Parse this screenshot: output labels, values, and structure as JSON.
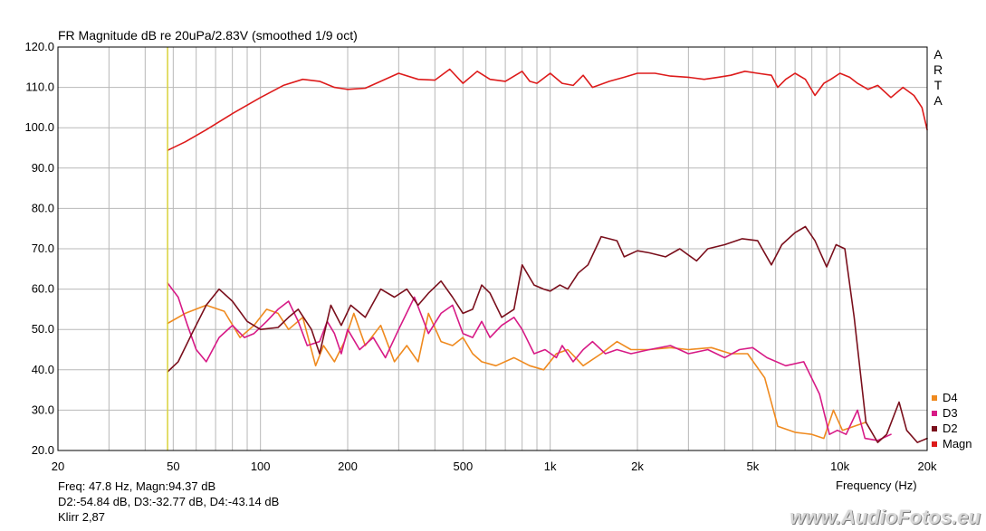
{
  "chart_data": {
    "type": "line",
    "title": "FR Magnitude dB re 20uPa/2.83V (smoothed 1/9 oct)",
    "xlabel": "Frequency (Hz)",
    "ylabel": "",
    "xscale": "log",
    "xlim": [
      20,
      20000
    ],
    "ylim": [
      20,
      120
    ],
    "grid": true,
    "legend_position": "bottom-right",
    "x_ticks": [
      {
        "value": 20,
        "label": "20"
      },
      {
        "value": 50,
        "label": "50"
      },
      {
        "value": 100,
        "label": "100"
      },
      {
        "value": 200,
        "label": "200"
      },
      {
        "value": 500,
        "label": "500"
      },
      {
        "value": 1000,
        "label": "1k"
      },
      {
        "value": 2000,
        "label": "2k"
      },
      {
        "value": 5000,
        "label": "5k"
      },
      {
        "value": 10000,
        "label": "10k"
      },
      {
        "value": 20000,
        "label": "20k"
      }
    ],
    "y_ticks": [
      {
        "value": 20,
        "label": "20.0"
      },
      {
        "value": 30,
        "label": "30.0"
      },
      {
        "value": 40,
        "label": "40.0"
      },
      {
        "value": 50,
        "label": "50.0"
      },
      {
        "value": 60,
        "label": "60.0"
      },
      {
        "value": 70,
        "label": "70.0"
      },
      {
        "value": 80,
        "label": "80.0"
      },
      {
        "value": 90,
        "label": "90.0"
      },
      {
        "value": 100,
        "label": "100.0"
      },
      {
        "value": 110,
        "label": "110.0"
      },
      {
        "value": 120,
        "label": "120.0"
      }
    ],
    "cursor_frequency": 47.8,
    "series": [
      {
        "name": "Magn",
        "color": "#dd1b1b",
        "points": [
          [
            47.8,
            94.4
          ],
          [
            55,
            96.5
          ],
          [
            65,
            99.5
          ],
          [
            80,
            103.5
          ],
          [
            100,
            107.5
          ],
          [
            120,
            110.5
          ],
          [
            140,
            112
          ],
          [
            160,
            111.5
          ],
          [
            180,
            110
          ],
          [
            200,
            109.5
          ],
          [
            230,
            109.8
          ],
          [
            260,
            111.5
          ],
          [
            300,
            113.5
          ],
          [
            350,
            112
          ],
          [
            400,
            111.8
          ],
          [
            450,
            114.5
          ],
          [
            500,
            111
          ],
          [
            560,
            114
          ],
          [
            620,
            112
          ],
          [
            700,
            111.5
          ],
          [
            800,
            114
          ],
          [
            850,
            111.5
          ],
          [
            900,
            111
          ],
          [
            1000,
            113.5
          ],
          [
            1100,
            111
          ],
          [
            1200,
            110.5
          ],
          [
            1300,
            113
          ],
          [
            1400,
            110
          ],
          [
            1600,
            111.5
          ],
          [
            1800,
            112.5
          ],
          [
            2000,
            113.5
          ],
          [
            2300,
            113.5
          ],
          [
            2600,
            112.8
          ],
          [
            3000,
            112.5
          ],
          [
            3400,
            112
          ],
          [
            3800,
            112.5
          ],
          [
            4200,
            113
          ],
          [
            4700,
            114
          ],
          [
            5200,
            113.5
          ],
          [
            5800,
            113
          ],
          [
            6100,
            110
          ],
          [
            6500,
            112
          ],
          [
            7000,
            113.5
          ],
          [
            7600,
            112
          ],
          [
            8200,
            108
          ],
          [
            8800,
            111
          ],
          [
            9300,
            112
          ],
          [
            10000,
            113.5
          ],
          [
            10800,
            112.5
          ],
          [
            11500,
            111
          ],
          [
            12500,
            109.5
          ],
          [
            13500,
            110.5
          ],
          [
            15000,
            107.5
          ],
          [
            16500,
            110
          ],
          [
            18000,
            108
          ],
          [
            19200,
            105
          ],
          [
            20000,
            99.5
          ]
        ]
      },
      {
        "name": "D2",
        "color": "#7a0f1c",
        "points": [
          [
            47.8,
            39.5
          ],
          [
            52,
            42
          ],
          [
            58,
            49
          ],
          [
            65,
            56
          ],
          [
            72,
            60
          ],
          [
            80,
            57
          ],
          [
            90,
            52
          ],
          [
            100,
            50
          ],
          [
            115,
            50.5
          ],
          [
            125,
            53
          ],
          [
            135,
            55
          ],
          [
            150,
            50
          ],
          [
            160,
            44
          ],
          [
            175,
            56
          ],
          [
            190,
            51
          ],
          [
            205,
            56
          ],
          [
            230,
            53
          ],
          [
            260,
            60
          ],
          [
            290,
            58
          ],
          [
            320,
            60
          ],
          [
            350,
            56
          ],
          [
            380,
            59
          ],
          [
            420,
            62
          ],
          [
            460,
            58
          ],
          [
            500,
            54
          ],
          [
            540,
            55
          ],
          [
            580,
            61
          ],
          [
            620,
            59
          ],
          [
            680,
            53
          ],
          [
            750,
            55
          ],
          [
            800,
            66
          ],
          [
            880,
            61
          ],
          [
            950,
            60
          ],
          [
            1000,
            59.5
          ],
          [
            1080,
            61
          ],
          [
            1150,
            60
          ],
          [
            1250,
            64
          ],
          [
            1350,
            66
          ],
          [
            1500,
            73
          ],
          [
            1700,
            72
          ],
          [
            1800,
            68
          ],
          [
            2000,
            69.5
          ],
          [
            2200,
            69
          ],
          [
            2500,
            68
          ],
          [
            2800,
            70
          ],
          [
            3200,
            67
          ],
          [
            3500,
            70
          ],
          [
            4000,
            71
          ],
          [
            4600,
            72.5
          ],
          [
            5200,
            72
          ],
          [
            5800,
            66
          ],
          [
            6300,
            71
          ],
          [
            7000,
            74
          ],
          [
            7600,
            75.5
          ],
          [
            8200,
            72
          ],
          [
            9000,
            65.5
          ],
          [
            9700,
            71
          ],
          [
            10400,
            70
          ],
          [
            11200,
            53
          ],
          [
            12300,
            27
          ],
          [
            13500,
            22
          ],
          [
            14500,
            24
          ],
          [
            16000,
            32
          ],
          [
            17000,
            25
          ],
          [
            18500,
            22
          ],
          [
            20000,
            23
          ]
        ]
      },
      {
        "name": "D3",
        "color": "#d71a86",
        "points": [
          [
            47.8,
            61.5
          ],
          [
            52,
            58
          ],
          [
            56,
            51
          ],
          [
            60,
            45
          ],
          [
            65,
            42
          ],
          [
            72,
            48
          ],
          [
            80,
            51
          ],
          [
            88,
            48
          ],
          [
            95,
            49
          ],
          [
            105,
            52
          ],
          [
            115,
            55
          ],
          [
            125,
            57
          ],
          [
            135,
            52
          ],
          [
            145,
            46
          ],
          [
            160,
            47
          ],
          [
            170,
            52
          ],
          [
            180,
            49
          ],
          [
            190,
            44
          ],
          [
            200,
            50
          ],
          [
            220,
            45
          ],
          [
            245,
            48
          ],
          [
            270,
            43
          ],
          [
            300,
            50
          ],
          [
            340,
            58
          ],
          [
            380,
            49
          ],
          [
            420,
            54
          ],
          [
            460,
            56
          ],
          [
            500,
            49
          ],
          [
            540,
            48
          ],
          [
            580,
            52
          ],
          [
            620,
            48
          ],
          [
            680,
            51
          ],
          [
            750,
            53
          ],
          [
            800,
            50
          ],
          [
            880,
            44
          ],
          [
            960,
            45
          ],
          [
            1050,
            43
          ],
          [
            1100,
            46
          ],
          [
            1200,
            42
          ],
          [
            1300,
            45
          ],
          [
            1400,
            47
          ],
          [
            1550,
            44
          ],
          [
            1700,
            45
          ],
          [
            1900,
            44
          ],
          [
            2200,
            45
          ],
          [
            2600,
            46
          ],
          [
            3000,
            44
          ],
          [
            3500,
            45
          ],
          [
            4000,
            43
          ],
          [
            4500,
            45
          ],
          [
            5000,
            45.5
          ],
          [
            5600,
            43
          ],
          [
            6500,
            41
          ],
          [
            7500,
            42
          ],
          [
            8500,
            34
          ],
          [
            9200,
            24
          ],
          [
            9800,
            25
          ],
          [
            10500,
            24
          ],
          [
            11500,
            30
          ],
          [
            12200,
            23
          ],
          [
            13500,
            22.5
          ],
          [
            15000,
            24
          ]
        ]
      },
      {
        "name": "D4",
        "color": "#ef8a1f",
        "points": [
          [
            47.8,
            51.5
          ],
          [
            55,
            54
          ],
          [
            65,
            56
          ],
          [
            75,
            54.5
          ],
          [
            85,
            48
          ],
          [
            95,
            51
          ],
          [
            105,
            55
          ],
          [
            115,
            54
          ],
          [
            125,
            50
          ],
          [
            140,
            53
          ],
          [
            155,
            41
          ],
          [
            165,
            46
          ],
          [
            180,
            42
          ],
          [
            195,
            47
          ],
          [
            210,
            54
          ],
          [
            230,
            46
          ],
          [
            260,
            51
          ],
          [
            290,
            42
          ],
          [
            320,
            46
          ],
          [
            350,
            42
          ],
          [
            380,
            54
          ],
          [
            420,
            47
          ],
          [
            460,
            46
          ],
          [
            500,
            48
          ],
          [
            540,
            44
          ],
          [
            580,
            42
          ],
          [
            650,
            41
          ],
          [
            750,
            43
          ],
          [
            850,
            41
          ],
          [
            950,
            40
          ],
          [
            1050,
            44
          ],
          [
            1150,
            45
          ],
          [
            1300,
            41
          ],
          [
            1500,
            44
          ],
          [
            1700,
            47
          ],
          [
            1900,
            45
          ],
          [
            2200,
            45
          ],
          [
            2600,
            45.5
          ],
          [
            3000,
            45
          ],
          [
            3600,
            45.5
          ],
          [
            4200,
            44
          ],
          [
            4800,
            44
          ],
          [
            5500,
            38
          ],
          [
            6100,
            26
          ],
          [
            7000,
            24.5
          ],
          [
            8000,
            24
          ],
          [
            8800,
            23
          ],
          [
            9500,
            30
          ],
          [
            10200,
            25
          ],
          [
            11200,
            26
          ],
          [
            12300,
            27
          ]
        ]
      }
    ],
    "legend": [
      {
        "name": "D4",
        "color": "#ef8a1f"
      },
      {
        "name": "D3",
        "color": "#d71a86"
      },
      {
        "name": "D2",
        "color": "#7a0f1c"
      },
      {
        "name": "Magn",
        "color": "#dd1b1b"
      }
    ],
    "cursor_color": "#d9d23a",
    "grid_color": "#b8b8b8"
  },
  "brand": "ARTA",
  "readout": {
    "line1": "Freq: 47.8 Hz, Magn:94.37 dB",
    "line2": "D2:-54.84 dB, D3:-32.77 dB, D4:-43.14 dB",
    "line3": "Klirr 2,87"
  },
  "watermark": "www.AudioFotos.eu"
}
